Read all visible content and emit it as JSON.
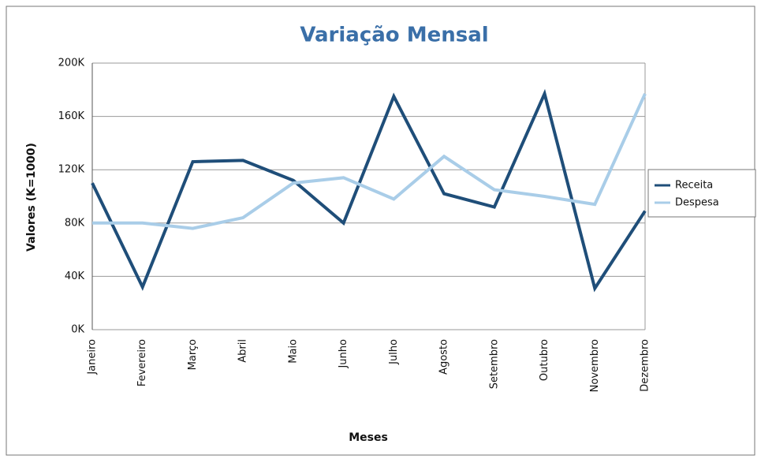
{
  "chart_data": {
    "type": "line",
    "title": "Variação Mensal",
    "x_label": "Meses",
    "y_label": "Valores (K=1000)",
    "categories": [
      "Janeiro",
      "Fevereiro",
      "Março",
      "Abril",
      "Maio",
      "Junho",
      "Julho",
      "Agosto",
      "Setembro",
      "Outubro",
      "Novembro",
      "Dezembro"
    ],
    "series": [
      {
        "name": "Receita",
        "color": "#1f4e79",
        "values": [
          110000,
          32000,
          126000,
          127000,
          112000,
          80000,
          175000,
          102000,
          92000,
          177000,
          31000,
          89000
        ]
      },
      {
        "name": "Despesa",
        "color": "#a9cde8",
        "values": [
          80000,
          80000,
          76000,
          84000,
          110000,
          114000,
          98000,
          130000,
          105000,
          100000,
          94000,
          177000
        ]
      }
    ],
    "ylim": [
      0,
      200000
    ],
    "yticks": [
      {
        "value": 0,
        "label": "0K"
      },
      {
        "value": 40000,
        "label": "40K"
      },
      {
        "value": 80000,
        "label": "80K"
      },
      {
        "value": 120000,
        "label": "120K"
      },
      {
        "value": 160000,
        "label": "160K"
      },
      {
        "value": 200000,
        "label": "200K"
      }
    ],
    "grid": true,
    "legend": "right"
  }
}
